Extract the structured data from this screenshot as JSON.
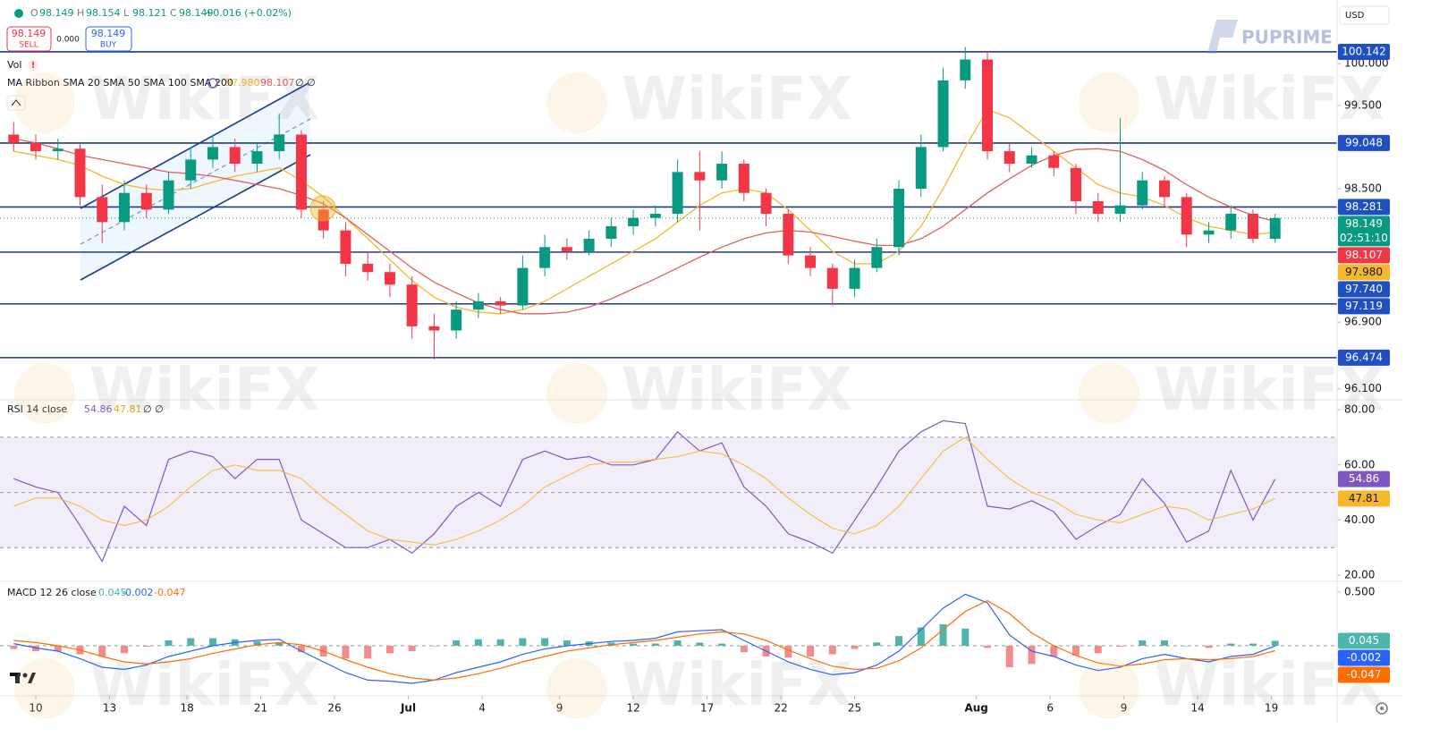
{
  "header": {
    "ohlc": [
      {
        "label": "O",
        "value": 98.149
      },
      {
        "label": "H",
        "value": 98.154
      },
      {
        "label": "L",
        "value": 98.121
      },
      {
        "label": "C",
        "value": 98.149
      }
    ],
    "change": "+0.016 (+0.02%)",
    "sell": {
      "price": 98.149,
      "label": "SELL"
    },
    "spread": "0.000",
    "buy": {
      "price": 98.149,
      "label": "BUY"
    },
    "currency": "USD",
    "brand": "PUPRIME",
    "watermark": "WikiFX"
  },
  "chart_data": [
    {
      "type": "candlestick",
      "legend_vol": "Vol",
      "vol_warning": "!",
      "indicator_label": "MA Ribbon SMA 20 SMA 50 SMA 100 SMA 200",
      "indicator_extra": "∅ ∅",
      "x": [
        -3,
        0,
        3,
        6,
        9,
        12,
        15,
        18,
        21,
        24,
        27,
        30,
        33,
        36,
        39,
        42,
        45,
        48,
        51,
        54,
        57,
        60,
        63,
        66,
        69,
        72,
        75,
        78,
        81,
        84,
        87,
        90,
        93,
        96,
        99,
        102,
        105,
        108,
        111,
        114,
        117,
        120,
        123,
        126,
        129,
        132,
        135,
        138,
        141,
        144,
        147,
        150,
        153,
        156,
        159,
        162,
        165,
        168
      ],
      "open": [
        99.15,
        99.05,
        98.95,
        98.98,
        98.4,
        98.1,
        98.45,
        98.25,
        98.6,
        98.85,
        99.0,
        98.8,
        98.95,
        99.15,
        98.25,
        98.0,
        97.6,
        97.5,
        97.35,
        96.85,
        96.8,
        97.05,
        97.15,
        97.1,
        97.55,
        97.8,
        97.75,
        97.9,
        98.05,
        98.15,
        98.2,
        98.7,
        98.6,
        98.8,
        98.45,
        98.2,
        97.7,
        97.55,
        97.3,
        97.55,
        97.8,
        98.5,
        99.0,
        99.8,
        100.05,
        98.95,
        98.8,
        98.9,
        98.75,
        98.35,
        98.2,
        98.3,
        98.6,
        98.4,
        97.95,
        98.0,
        98.2,
        97.9
      ],
      "high": [
        99.3,
        99.15,
        99.1,
        99.05,
        98.55,
        98.6,
        98.55,
        98.7,
        99.0,
        99.15,
        99.1,
        99.05,
        99.4,
        99.2,
        98.35,
        98.1,
        97.75,
        97.6,
        97.45,
        97.0,
        97.15,
        97.25,
        97.2,
        97.7,
        97.95,
        97.9,
        98.0,
        98.15,
        98.25,
        98.3,
        98.85,
        98.95,
        98.95,
        98.85,
        98.5,
        98.25,
        97.8,
        97.6,
        97.65,
        97.9,
        98.6,
        99.15,
        99.95,
        100.2,
        100.15,
        99.05,
        99.0,
        98.95,
        98.8,
        98.45,
        99.35,
        98.7,
        98.65,
        98.45,
        98.1,
        98.3,
        98.25,
        98.2
      ],
      "low": [
        98.95,
        98.85,
        98.85,
        98.3,
        97.85,
        98.0,
        98.15,
        98.2,
        98.5,
        98.75,
        98.7,
        98.7,
        98.85,
        98.15,
        97.9,
        97.45,
        97.4,
        97.2,
        96.7,
        96.45,
        96.7,
        96.95,
        97.0,
        97.05,
        97.45,
        97.65,
        97.7,
        97.8,
        97.95,
        98.05,
        98.1,
        98.0,
        98.5,
        98.35,
        98.05,
        97.6,
        97.45,
        97.1,
        97.2,
        97.5,
        97.7,
        98.4,
        98.95,
        99.7,
        98.85,
        98.7,
        98.75,
        98.65,
        98.2,
        98.1,
        98.1,
        98.25,
        98.3,
        97.8,
        97.85,
        97.9,
        97.85,
        97.85
      ],
      "close": [
        99.05,
        98.95,
        98.98,
        98.4,
        98.1,
        98.45,
        98.25,
        98.6,
        98.85,
        99.0,
        98.8,
        98.95,
        99.15,
        98.25,
        98.0,
        97.6,
        97.5,
        97.35,
        96.85,
        96.8,
        97.05,
        97.15,
        97.1,
        97.55,
        97.8,
        97.75,
        97.9,
        98.05,
        98.15,
        98.2,
        98.7,
        98.6,
        98.8,
        98.45,
        98.2,
        97.7,
        97.55,
        97.3,
        97.55,
        97.8,
        98.5,
        99.0,
        99.8,
        100.05,
        98.95,
        98.8,
        98.9,
        98.75,
        98.35,
        98.2,
        98.3,
        98.6,
        98.4,
        97.95,
        98.0,
        98.2,
        97.9,
        98.149
      ],
      "up_color": "#089981",
      "down_color": "#f23645",
      "ma_series": [
        {
          "color": "#f5b829",
          "last_label": "97.980",
          "values": [
            98.95,
            98.9,
            98.85,
            98.78,
            98.65,
            98.55,
            98.5,
            98.48,
            98.5,
            98.58,
            98.65,
            98.7,
            98.75,
            98.6,
            98.4,
            98.15,
            97.9,
            97.65,
            97.4,
            97.2,
            97.08,
            97.02,
            97.0,
            97.05,
            97.15,
            97.3,
            97.45,
            97.6,
            97.75,
            97.9,
            98.1,
            98.3,
            98.45,
            98.5,
            98.45,
            98.25,
            98.0,
            97.75,
            97.6,
            97.6,
            97.75,
            98.05,
            98.5,
            99.0,
            99.45,
            99.35,
            99.15,
            98.95,
            98.75,
            98.55,
            98.45,
            98.4,
            98.3,
            98.15,
            98.05,
            98.0,
            97.95,
            97.98
          ]
        },
        {
          "color": "#e0605e",
          "values": [
            99.1,
            99.05,
            98.98,
            98.9,
            98.85,
            98.8,
            98.75,
            98.7,
            98.68,
            98.65,
            98.6,
            98.55,
            98.5,
            98.42,
            98.32,
            98.15,
            97.95,
            97.75,
            97.55,
            97.38,
            97.25,
            97.13,
            97.05,
            97.0,
            97.0,
            97.02,
            97.08,
            97.18,
            97.3,
            97.42,
            97.55,
            97.68,
            97.8,
            97.9,
            97.97,
            98.0,
            97.98,
            97.93,
            97.87,
            97.82,
            97.82,
            97.9,
            98.05,
            98.25,
            98.45,
            98.62,
            98.78,
            98.9,
            98.97,
            98.98,
            98.95,
            98.85,
            98.72,
            98.55,
            98.4,
            98.28,
            98.18,
            98.107
          ]
        }
      ],
      "levels": [
        100.142,
        99.048,
        98.281,
        {
          "value": 97.74,
          "label": "97.740"
        },
        97.119,
        96.474
      ],
      "level_color": "#1c3a94",
      "level_tag_color": "#1e4fc4",
      "countdown": "02:51:10",
      "xlim": [
        -4.85,
        176.4
      ],
      "xticks": [
        {
          "value": 0,
          "label": "10"
        },
        {
          "value": 10,
          "label": "13"
        },
        {
          "value": 20.5,
          "label": "18"
        },
        {
          "value": 30.5,
          "label": "21"
        },
        {
          "value": 40.5,
          "label": "26"
        },
        {
          "value": 50.5,
          "label": "Jul"
        },
        {
          "value": 60.5,
          "label": "4"
        },
        {
          "value": 71,
          "label": "9"
        },
        {
          "value": 81,
          "label": "12"
        },
        {
          "value": 91,
          "label": "17"
        },
        {
          "value": 101,
          "label": "22"
        },
        {
          "value": 111,
          "label": "25"
        },
        {
          "value": 127.5,
          "label": "Aug"
        },
        {
          "value": 137.5,
          "label": "6"
        },
        {
          "value": 147.5,
          "label": "9"
        },
        {
          "value": 157.5,
          "label": "14"
        },
        {
          "value": 167.5,
          "label": "19"
        }
      ],
      "ylim": [
        95.99,
        100.71
      ],
      "yticks": [
        {
          "value": 100,
          "label": "100.000"
        },
        {
          "value": 99.5,
          "label": "99.500"
        },
        {
          "value": 98.5,
          "label": "98.500"
        },
        {
          "value": 96.9,
          "label": "96.900"
        },
        {
          "value": 96.1,
          "label": "96.100"
        }
      ]
    },
    {
      "type": "line",
      "label": "RSI 14 close",
      "extra": "∅ ∅",
      "series": [
        {
          "color": "#7e57c2",
          "values": [
            55,
            52,
            50,
            38,
            25,
            45,
            38,
            62,
            65,
            63,
            55,
            62,
            62,
            40,
            35,
            30,
            30,
            33,
            28,
            35,
            45,
            50,
            45,
            62,
            65,
            62,
            63,
            60,
            60,
            62,
            72,
            65,
            68,
            52,
            45,
            35,
            32,
            28,
            40,
            52,
            65,
            72,
            76,
            75,
            45,
            44,
            47,
            43,
            33,
            38,
            42,
            55,
            46,
            32,
            36,
            58,
            40,
            54.86
          ]
        },
        {
          "color": "#f5b829",
          "values": [
            45,
            48,
            48,
            45,
            40,
            38,
            40,
            45,
            52,
            58,
            60,
            58,
            58,
            55,
            48,
            42,
            36,
            33,
            32,
            31,
            33,
            36,
            40,
            45,
            52,
            56,
            60,
            61,
            61,
            62,
            63,
            65,
            64,
            60,
            55,
            48,
            42,
            37,
            35,
            38,
            45,
            55,
            65,
            70,
            62,
            55,
            50,
            47,
            42,
            40,
            39,
            42,
            45,
            44,
            40,
            42,
            44,
            47.81
          ]
        }
      ],
      "hlines": [
        70,
        50,
        30
      ],
      "band_color": "#ede7f6",
      "ylim": [
        18.4,
        83.6
      ],
      "yticks": [
        {
          "value": 80,
          "label": "80.00"
        },
        {
          "value": 60,
          "label": "60.00"
        },
        {
          "value": 40,
          "label": "40.00"
        },
        {
          "value": 20,
          "label": "20.00"
        }
      ]
    },
    {
      "type": "macd",
      "label": "MACD 12 26 close",
      "histogram": {
        "up_color": "#4db6ac",
        "down_color": "#f28b8b",
        "values": [
          -0.03,
          -0.05,
          -0.05,
          -0.08,
          -0.1,
          -0.07,
          -0.01,
          0.05,
          0.07,
          0.07,
          0.06,
          0.04,
          0.03,
          -0.06,
          -0.1,
          -0.12,
          -0.12,
          -0.07,
          -0.05,
          0.0,
          0.05,
          0.06,
          0.06,
          0.07,
          0.07,
          0.05,
          0.04,
          0.03,
          0.02,
          0.02,
          0.05,
          0.03,
          0.02,
          -0.06,
          -0.1,
          -0.11,
          -0.1,
          -0.08,
          -0.03,
          0.03,
          0.09,
          0.17,
          0.2,
          0.16,
          -0.02,
          -0.2,
          -0.17,
          -0.1,
          -0.09,
          -0.07,
          -0.01,
          0.05,
          0.05,
          0.0,
          -0.02,
          0.02,
          0.02,
          0.045
        ]
      },
      "series": [
        {
          "color": "#2962ff",
          "values": [
            0.02,
            -0.02,
            -0.05,
            -0.12,
            -0.2,
            -0.22,
            -0.18,
            -0.1,
            -0.05,
            0.0,
            0.03,
            0.05,
            0.06,
            -0.05,
            -0.15,
            -0.25,
            -0.32,
            -0.33,
            -0.35,
            -0.32,
            -0.25,
            -0.2,
            -0.15,
            -0.08,
            -0.03,
            0.0,
            0.02,
            0.04,
            0.05,
            0.07,
            0.13,
            0.14,
            0.15,
            0.05,
            -0.05,
            -0.15,
            -0.22,
            -0.27,
            -0.25,
            -0.18,
            -0.05,
            0.15,
            0.35,
            0.48,
            0.4,
            0.1,
            -0.05,
            -0.1,
            -0.18,
            -0.23,
            -0.2,
            -0.12,
            -0.08,
            -0.12,
            -0.15,
            -0.1,
            -0.08,
            -0.002
          ]
        },
        {
          "color": "#ff6d00",
          "values": [
            0.05,
            0.03,
            0.0,
            -0.04,
            -0.1,
            -0.15,
            -0.17,
            -0.15,
            -0.12,
            -0.07,
            -0.03,
            0.01,
            0.03,
            0.01,
            -0.05,
            -0.13,
            -0.2,
            -0.26,
            -0.3,
            -0.32,
            -0.3,
            -0.26,
            -0.21,
            -0.15,
            -0.1,
            -0.05,
            -0.02,
            0.01,
            0.03,
            0.05,
            0.08,
            0.11,
            0.13,
            0.11,
            0.05,
            -0.04,
            -0.12,
            -0.19,
            -0.22,
            -0.21,
            -0.14,
            -0.02,
            0.15,
            0.32,
            0.42,
            0.3,
            0.12,
            0.0,
            -0.09,
            -0.16,
            -0.19,
            -0.17,
            -0.13,
            -0.12,
            -0.13,
            -0.12,
            -0.1,
            -0.047
          ]
        }
      ],
      "hlines": [
        0
      ],
      "ylim": [
        -0.467,
        0.583
      ],
      "yticks": [
        {
          "value": 0.5,
          "label": "0.500"
        }
      ]
    }
  ]
}
